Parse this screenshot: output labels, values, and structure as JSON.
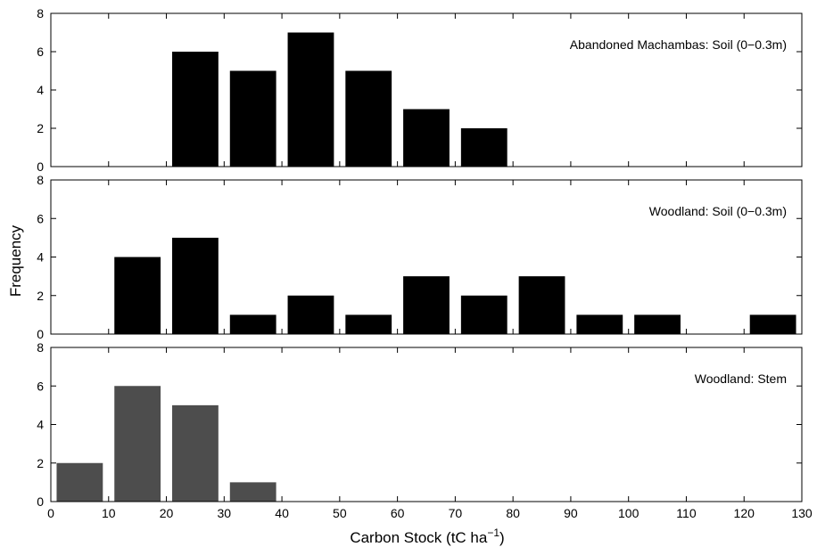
{
  "chart_data": {
    "type": "bar",
    "xlabel": "Carbon Stock (tC ha",
    "xlabel_superscript": "−1",
    "xlabel_close": ")",
    "ylabel": "Frequency",
    "xlim": [
      0,
      130
    ],
    "xticks": [
      0,
      10,
      20,
      30,
      40,
      50,
      60,
      70,
      80,
      90,
      100,
      110,
      120,
      130
    ],
    "ylim": [
      0,
      8
    ],
    "yticks": [
      0,
      2,
      4,
      6,
      8
    ],
    "bin_width": 10,
    "bar_fraction": 0.8,
    "panels": [
      {
        "label": "Abandoned Machambas: Soil (0−0.3m)",
        "color": "#000000",
        "bin_centers": [
          25,
          35,
          45,
          55,
          65,
          75
        ],
        "values": [
          6,
          5,
          7,
          5,
          3,
          2
        ]
      },
      {
        "label": "Woodland: Soil (0−0.3m)",
        "color": "#000000",
        "bin_centers": [
          15,
          25,
          35,
          45,
          55,
          65,
          75,
          85,
          95,
          105,
          125
        ],
        "values": [
          4,
          5,
          1,
          2,
          1,
          3,
          2,
          3,
          1,
          1,
          1
        ]
      },
      {
        "label": "Woodland: Stem",
        "color": "#4d4d4d",
        "bin_centers": [
          5,
          15,
          25,
          35
        ],
        "values": [
          2,
          6,
          5,
          1
        ]
      }
    ]
  }
}
